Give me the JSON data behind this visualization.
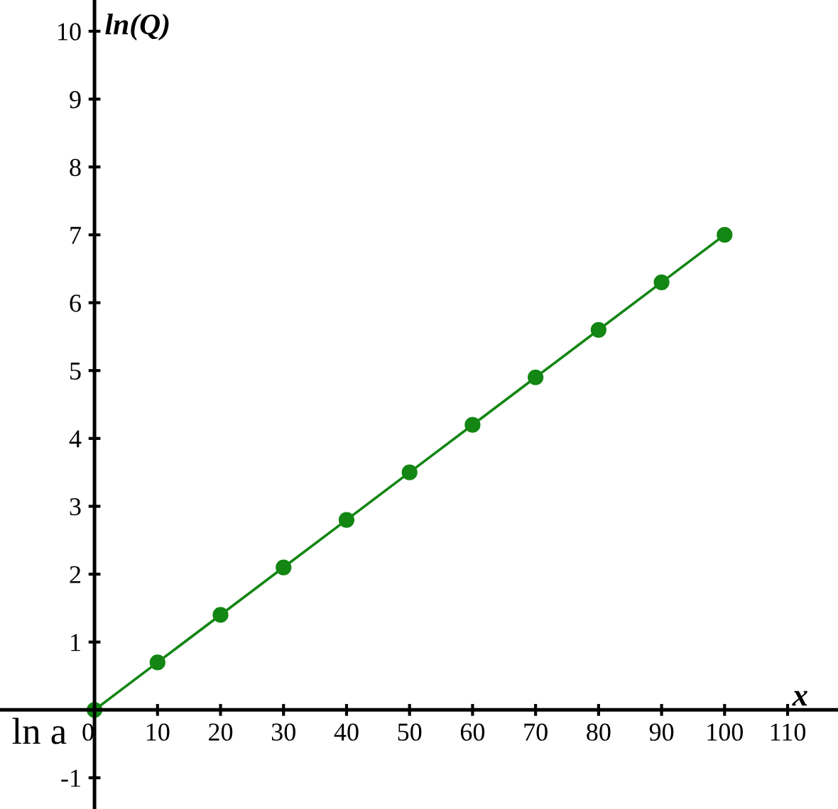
{
  "chart_data": {
    "type": "line",
    "xlabel": "x",
    "ylabel": "ln(Q)",
    "x": [
      0,
      10,
      20,
      30,
      40,
      50,
      60,
      70,
      80,
      90,
      100
    ],
    "series": [
      {
        "color": "#138613",
        "values": [
          0,
          0.7,
          1.4,
          2.1,
          2.8,
          3.5,
          4.2,
          4.9,
          5.6,
          6.3,
          7.0
        ]
      }
    ],
    "xlim": [
      -15,
      118
    ],
    "ylim": [
      -1.46,
      10.46
    ],
    "xticks": [
      0,
      10,
      20,
      30,
      40,
      50,
      60,
      70,
      80,
      90,
      100,
      110
    ],
    "yticks": [
      -1,
      1,
      2,
      3,
      4,
      5,
      6,
      7,
      8,
      9,
      10
    ],
    "annotations": [
      {
        "text": "ln a",
        "x": 0,
        "y": 0
      }
    ],
    "marker": "circle",
    "line_style": "solid",
    "grid": false,
    "legend": false
  }
}
